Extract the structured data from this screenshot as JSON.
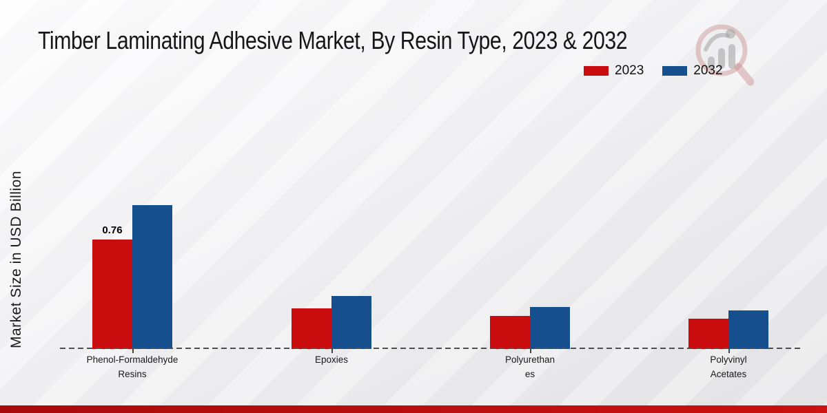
{
  "title": "Timber Laminating Adhesive Market, By Resin Type, 2023 & 2032",
  "y_axis_label": "Market Size in USD Billion",
  "legend": [
    {
      "label": "2023",
      "color": "#c90d0e"
    },
    {
      "label": "2032",
      "color": "#164f8d"
    }
  ],
  "chart_data": {
    "type": "bar",
    "title": "Timber Laminating Adhesive Market, By Resin Type, 2023 & 2032",
    "ylabel": "Market Size in USD Billion",
    "xlabel": "",
    "categories": [
      "Phenol-Formaldehyde\nResins",
      "Epoxies",
      "Polyurethan\nes",
      "Polyvinyl\nAcetates"
    ],
    "series": [
      {
        "name": "2023",
        "color": "#c90d0e",
        "values": [
          0.76,
          0.28,
          0.23,
          0.21
        ],
        "value_labels": [
          "0.76",
          "",
          "",
          ""
        ]
      },
      {
        "name": "2032",
        "color": "#164f8d",
        "values": [
          1.0,
          0.37,
          0.29,
          0.27
        ],
        "value_labels": [
          "",
          "",
          "",
          ""
        ]
      }
    ],
    "ylim": [
      0,
      1.15
    ],
    "grid": false,
    "axis_style": "dashed-baseline-only",
    "legend_position": "top-right"
  },
  "icons": {
    "logo": "magnifier-bar-chart-logo"
  },
  "colors": {
    "bar_2023": "#c90d0e",
    "bar_2032": "#164f8d",
    "baseline": "#4d4d4d",
    "footer_bar_left": "#a80a0a",
    "footer_bar_right": "#cb1111",
    "background_top": "#fdfdfe",
    "background_bottom": "#e5e5e7"
  }
}
